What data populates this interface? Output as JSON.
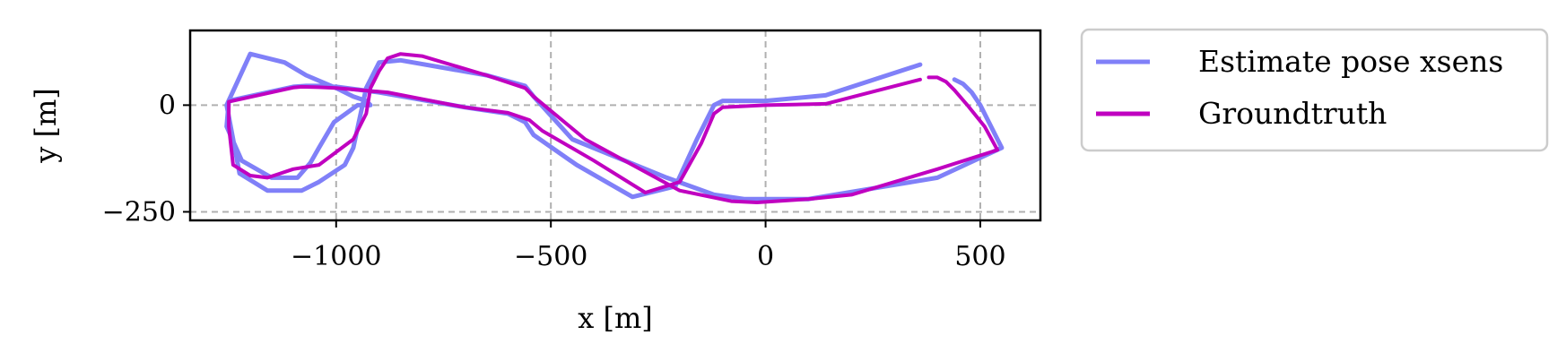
{
  "chart_data": {
    "type": "line",
    "title": "",
    "xlabel": "x [m]",
    "ylabel": "y [m]",
    "xlim": [
      -1340,
      640
    ],
    "ylim": [
      -270,
      175
    ],
    "xticks": [
      {
        "value": -1000,
        "label": "−1000"
      },
      {
        "value": -500,
        "label": "−500"
      },
      {
        "value": 0,
        "label": "0"
      },
      {
        "value": 500,
        "label": "500"
      }
    ],
    "yticks": [
      {
        "value": 0,
        "label": "0"
      },
      {
        "value": -250,
        "label": "−250"
      }
    ],
    "grid": true,
    "legend_position": "outside-right",
    "series": [
      {
        "name": "Estimate pose xsens",
        "color": "#8080f8",
        "x": [
          360,
          140,
          0,
          -100,
          -120,
          -160,
          -210,
          -310,
          -440,
          -540,
          -560,
          -600,
          -700,
          -900,
          -1000,
          -1040,
          -1070,
          -1100,
          -1250,
          -1255,
          -1220,
          -1150,
          -1090,
          -1060,
          -1040,
          -1005,
          -950,
          -920,
          -930,
          -960,
          -1000,
          -1070,
          -1120,
          -1200,
          -1255,
          -1225,
          -1160,
          -1080,
          -1040,
          -980,
          -960,
          -930,
          -900,
          -850,
          -650,
          -560,
          -540,
          -450,
          -230,
          -120,
          -50,
          100,
          400,
          550,
          520,
          500,
          480,
          460,
          440
        ],
        "y": [
          95,
          23,
          10,
          10,
          0,
          -80,
          -190,
          -215,
          -140,
          -70,
          -40,
          -20,
          -5,
          30,
          43,
          45,
          45,
          43,
          10,
          -50,
          -130,
          -170,
          -170,
          -135,
          -100,
          -40,
          0,
          0,
          10,
          20,
          40,
          70,
          100,
          120,
          0,
          -160,
          -200,
          -200,
          -180,
          -140,
          -100,
          40,
          100,
          105,
          70,
          45,
          20,
          -80,
          -170,
          -210,
          -220,
          -220,
          -170,
          -100,
          -40,
          0,
          30,
          50,
          60
        ]
      },
      {
        "name": "Groundtruth",
        "color": "#c000c0",
        "x": [
          360,
          140,
          0,
          -100,
          -120,
          -150,
          -200,
          -280,
          -400,
          -520,
          -550,
          -600,
          -700,
          -880,
          -1000,
          -1040,
          -1080,
          -1100,
          -1250,
          -1250,
          -1240,
          -1200,
          -1160,
          -1130,
          -1100,
          -1040,
          -960,
          -930,
          -920,
          -900,
          -880,
          -850,
          -800,
          -650,
          -560,
          -540,
          -420,
          -200,
          -80,
          -20,
          100,
          200,
          400,
          540,
          510,
          470,
          440,
          420,
          400,
          380
        ],
        "y": [
          60,
          3,
          0,
          -5,
          -20,
          -90,
          -180,
          -205,
          -130,
          -60,
          -35,
          -18,
          -5,
          30,
          40,
          42,
          43,
          41,
          8,
          -50,
          -140,
          -165,
          -170,
          -160,
          -150,
          -140,
          -80,
          -20,
          40,
          80,
          110,
          120,
          115,
          70,
          40,
          20,
          -80,
          -200,
          -225,
          -228,
          -220,
          -210,
          -150,
          -105,
          -50,
          0,
          35,
          55,
          65,
          65
        ]
      }
    ]
  }
}
